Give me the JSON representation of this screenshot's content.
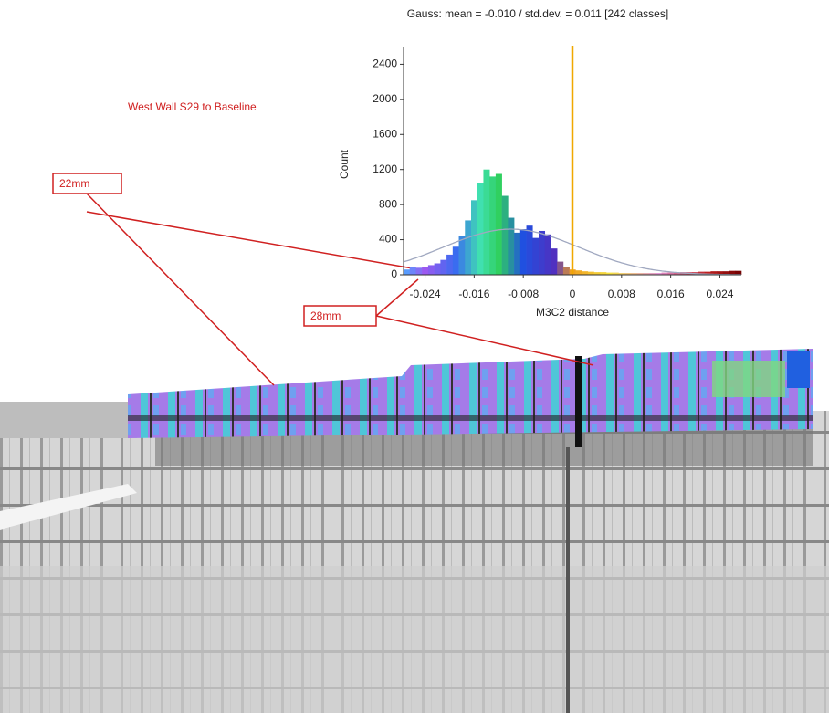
{
  "chart_data": {
    "type": "histogram",
    "title": "Gauss: mean = -0.010 / std.dev. = 0.011 [242 classes]",
    "xlabel": "M3C2 distance",
    "ylabel": "Count",
    "annotations": [
      "West Wall S29 to Baseline",
      "22mm",
      "28mm"
    ],
    "bins": [
      -0.0275,
      -0.0265,
      -0.0255,
      -0.0245,
      -0.0235,
      -0.0225,
      -0.0215,
      -0.0205,
      -0.0195,
      -0.0185,
      -0.0175,
      -0.0165,
      -0.0155,
      -0.0145,
      -0.0135,
      -0.0125,
      -0.0115,
      -0.0105,
      -0.0095,
      -0.0085,
      -0.0075,
      -0.0065,
      -0.0055,
      -0.0045,
      -0.0035,
      -0.0025,
      -0.0015,
      -0.0005,
      0.0005,
      0.0015,
      0.0025,
      0.0035,
      0.0045,
      0.0055,
      0.0065,
      0.0075,
      0.0085,
      0.0095,
      0.0105,
      0.0115,
      0.0125,
      0.0135,
      0.0145,
      0.0155,
      0.0165,
      0.0175,
      0.0185,
      0.0195,
      0.0205,
      0.0215,
      0.0225,
      0.0235,
      0.0245,
      0.0255,
      0.0265,
      0.0275
    ],
    "values": [
      60,
      90,
      80,
      90,
      110,
      130,
      170,
      230,
      320,
      440,
      620,
      850,
      1050,
      1200,
      1120,
      1150,
      900,
      650,
      480,
      520,
      560,
      420,
      500,
      460,
      300,
      150,
      90,
      60,
      50,
      40,
      35,
      30,
      30,
      25,
      25,
      20,
      20,
      20,
      20,
      20,
      20,
      20,
      25,
      25,
      25,
      30,
      30,
      30,
      35,
      35,
      40,
      40,
      40,
      45,
      45
    ],
    "color_stops": [
      {
        "value": -0.0275,
        "color": "#4da6ff"
      },
      {
        "value": -0.024,
        "color": "#9b59f0"
      },
      {
        "value": -0.019,
        "color": "#3a6cf0"
      },
      {
        "value": -0.015,
        "color": "#40e0b0"
      },
      {
        "value": -0.012,
        "color": "#30d060"
      },
      {
        "value": -0.008,
        "color": "#2050e0"
      },
      {
        "value": -0.003,
        "color": "#5030c0"
      },
      {
        "value": 0,
        "color": "#f0a020"
      },
      {
        "value": 0.006,
        "color": "#f5e040"
      },
      {
        "value": 0.014,
        "color": "#e090d0"
      },
      {
        "value": 0.022,
        "color": "#c02020"
      },
      {
        "value": 0.0275,
        "color": "#700000"
      }
    ],
    "fit_curve": {
      "mean": -0.01,
      "std": 0.011,
      "peak": 520,
      "color": "#a0a8c0"
    },
    "vline": {
      "x": 0,
      "color": "#f0a800"
    },
    "xlim": [
      -0.0275,
      0.0275
    ],
    "xticks": [
      -0.024,
      -0.016,
      -0.008,
      0,
      0.008,
      0.016,
      0.024
    ],
    "ylim": [
      0,
      2550
    ],
    "yticks": [
      0,
      400,
      800,
      1200,
      1600,
      2000,
      2400
    ]
  }
}
